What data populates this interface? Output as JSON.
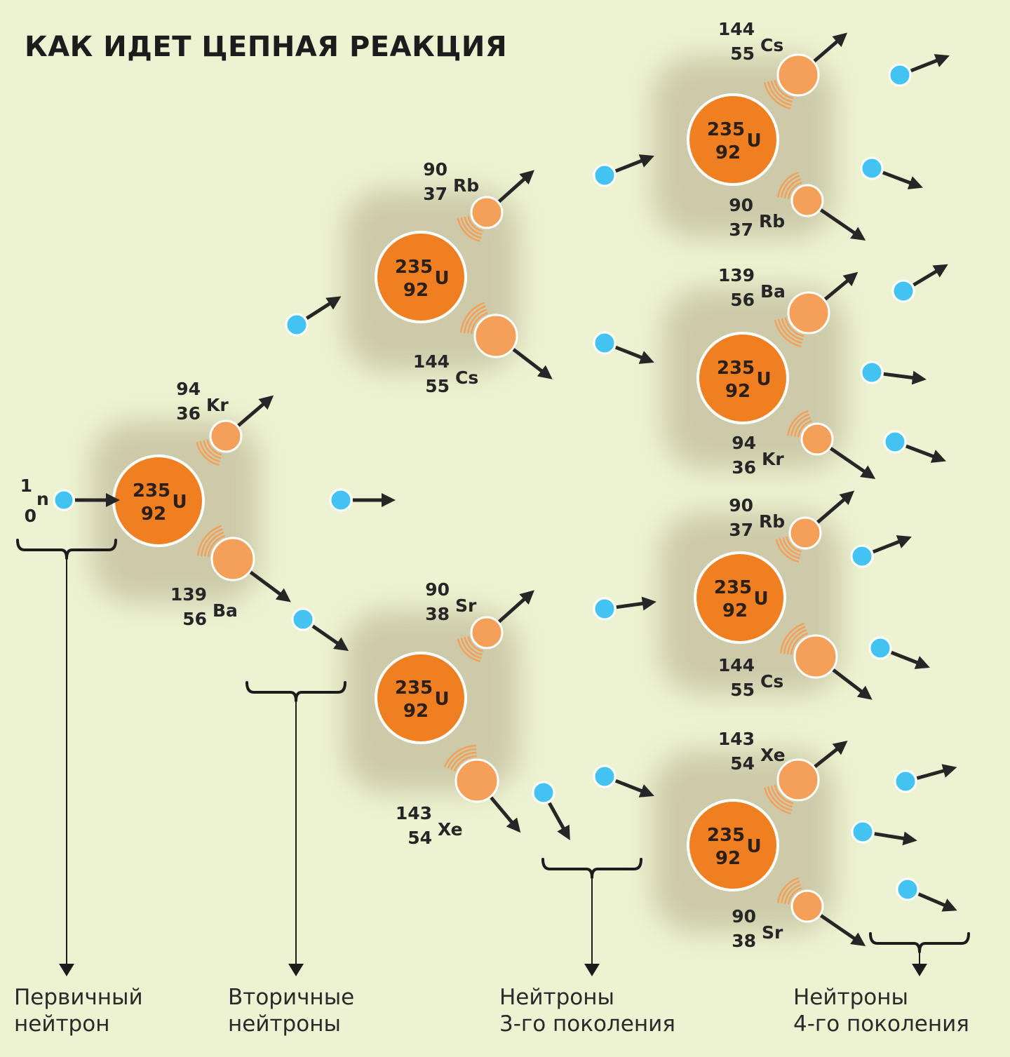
{
  "title": "КАК ИДЕТ ЦЕПНАЯ РЕАКЦИЯ",
  "colors": {
    "background": "#edf3d2",
    "uranium": "#f07f22",
    "fragment": "#f4a059",
    "neutron": "#42c3f1",
    "arrow": "#262626",
    "shadow": "#c7c3a2"
  },
  "primary_neutron": {
    "mass": "1",
    "charge": "0",
    "symbol": "n"
  },
  "uranium": {
    "mass": "235",
    "charge": "92",
    "symbol": "U"
  },
  "fragments": [
    {
      "mass": "94",
      "charge": "36",
      "symbol": "Kr"
    },
    {
      "mass": "139",
      "charge": "56",
      "symbol": "Ba"
    },
    {
      "mass": "90",
      "charge": "37",
      "symbol": "Rb"
    },
    {
      "mass": "144",
      "charge": "55",
      "symbol": "Cs"
    },
    {
      "mass": "90",
      "charge": "38",
      "symbol": "Sr"
    },
    {
      "mass": "143",
      "charge": "54",
      "symbol": "Xe"
    },
    {
      "mass": "144",
      "charge": "55",
      "symbol": "Cs"
    },
    {
      "mass": "90",
      "charge": "37",
      "symbol": "Rb"
    },
    {
      "mass": "139",
      "charge": "56",
      "symbol": "Ba"
    },
    {
      "mass": "94",
      "charge": "36",
      "symbol": "Kr"
    },
    {
      "mass": "90",
      "charge": "37",
      "symbol": "Rb"
    },
    {
      "mass": "144",
      "charge": "55",
      "symbol": "Cs"
    },
    {
      "mass": "143",
      "charge": "54",
      "symbol": "Xe"
    },
    {
      "mass": "90",
      "charge": "38",
      "symbol": "Sr"
    }
  ],
  "captions": [
    {
      "line1": "Первичный",
      "line2": "нейтрон"
    },
    {
      "line1": "Вторичные",
      "line2": "нейтроны"
    },
    {
      "line1": "Нейтроны",
      "line2": "3-го поколения"
    },
    {
      "line1": "Нейтроны",
      "line2": "4-го поколения"
    }
  ]
}
